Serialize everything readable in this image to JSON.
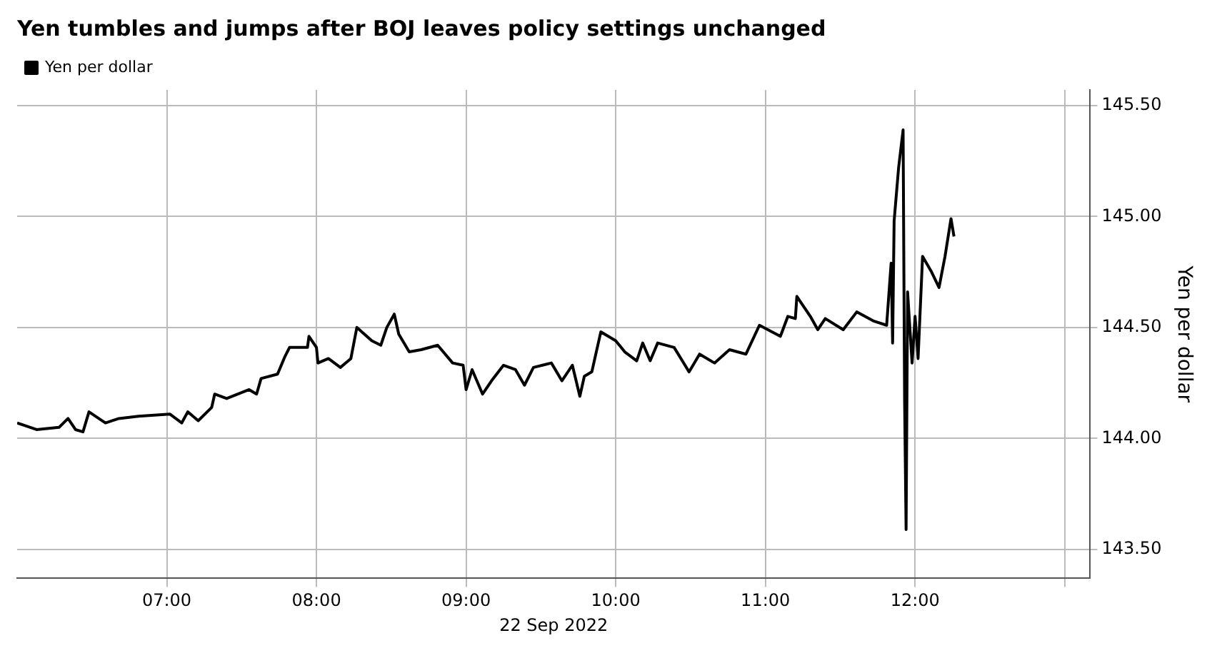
{
  "chart_data": {
    "type": "line",
    "title": "Yen tumbles and jumps after BOJ leaves policy settings unchanged",
    "xlabel": "22 Sep 2022",
    "ylabel": "Yen per dollar",
    "legend": "top left",
    "grid": true,
    "xlim": [
      6,
      13.17
    ],
    "xticks": [
      {
        "value": 7,
        "label": "07:00"
      },
      {
        "value": 8,
        "label": "08:00"
      },
      {
        "value": 9,
        "label": "09:00"
      },
      {
        "value": 10,
        "label": "10:00"
      },
      {
        "value": 11,
        "label": "11:00"
      },
      {
        "value": 12,
        "label": "12:00"
      },
      {
        "value": 13,
        "label": null
      }
    ],
    "ylim": [
      143.37,
      145.57
    ],
    "yticks": [
      {
        "value": 143.5,
        "label": "143.50"
      },
      {
        "value": 144,
        "label": "144.00"
      },
      {
        "value": 144.5,
        "label": "144.50"
      },
      {
        "value": 145,
        "label": "145.00"
      },
      {
        "value": 145.5,
        "label": "145.50"
      }
    ],
    "series": [
      {
        "name": "Yen per dollar",
        "color": "#000000",
        "x": [
          6.0,
          6.13,
          6.28,
          6.34,
          6.39,
          6.44,
          6.48,
          6.59,
          6.68,
          6.81,
          7.02,
          7.1,
          7.14,
          7.21,
          7.3,
          7.32,
          7.4,
          7.55,
          7.6,
          7.63,
          7.74,
          7.79,
          7.82,
          7.94,
          7.95,
          8.0,
          8.01,
          8.08,
          8.16,
          8.23,
          8.27,
          8.37,
          8.43,
          8.47,
          8.52,
          8.55,
          8.62,
          8.7,
          8.81,
          8.91,
          8.98,
          9.0,
          9.04,
          9.11,
          9.17,
          9.25,
          9.33,
          9.39,
          9.45,
          9.57,
          9.64,
          9.71,
          9.76,
          9.79,
          9.84,
          9.9,
          10.0,
          10.06,
          10.14,
          10.18,
          10.23,
          10.28,
          10.39,
          10.49,
          10.56,
          10.66,
          10.76,
          10.87,
          10.96,
          11.1,
          11.15,
          11.2,
          11.21,
          11.3,
          11.35,
          11.4,
          11.52,
          11.61,
          11.72,
          11.81,
          11.84,
          11.85,
          11.86,
          11.89,
          11.92,
          11.93,
          11.94,
          11.95,
          11.98,
          12.0,
          12.02,
          12.05,
          12.11,
          12.16,
          12.2,
          12.24,
          12.26
        ],
        "values": [
          144.07,
          144.04,
          144.05,
          144.09,
          144.04,
          144.03,
          144.12,
          144.07,
          144.09,
          144.1,
          144.11,
          144.07,
          144.12,
          144.08,
          144.14,
          144.2,
          144.18,
          144.22,
          144.2,
          144.27,
          144.29,
          144.37,
          144.41,
          144.41,
          144.46,
          144.41,
          144.34,
          144.36,
          144.32,
          144.36,
          144.5,
          144.44,
          144.42,
          144.5,
          144.56,
          144.47,
          144.39,
          144.4,
          144.42,
          144.34,
          144.33,
          144.22,
          144.31,
          144.2,
          144.26,
          144.33,
          144.31,
          144.24,
          144.32,
          144.34,
          144.26,
          144.33,
          144.19,
          144.28,
          144.3,
          144.48,
          144.44,
          144.39,
          144.35,
          144.43,
          144.35,
          144.43,
          144.41,
          144.3,
          144.38,
          144.34,
          144.4,
          144.38,
          144.51,
          144.46,
          144.55,
          144.54,
          144.64,
          144.55,
          144.49,
          144.54,
          144.49,
          144.57,
          144.53,
          144.51,
          144.79,
          144.43,
          144.98,
          145.22,
          145.39,
          144.17,
          143.59,
          144.66,
          144.34,
          144.55,
          144.36,
          144.82,
          144.75,
          144.68,
          144.82,
          144.99,
          144.91
        ]
      }
    ]
  }
}
